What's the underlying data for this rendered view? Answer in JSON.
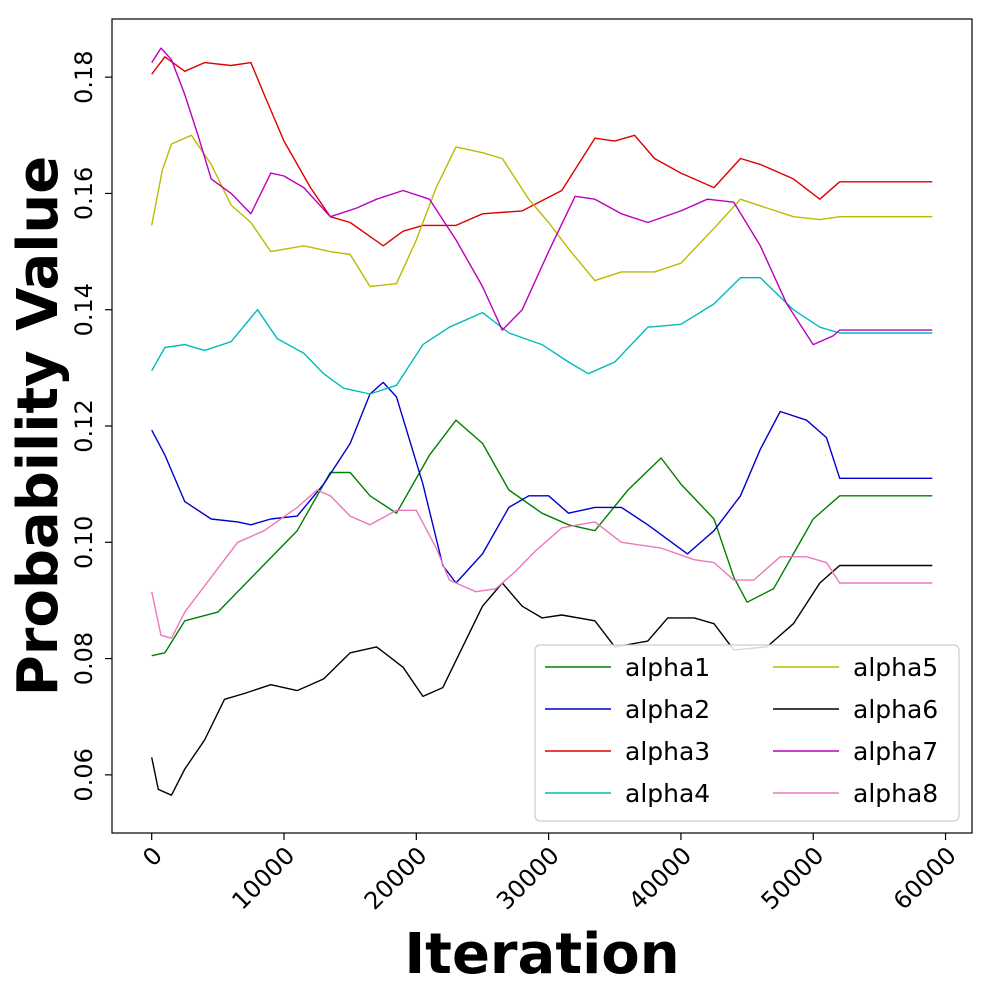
{
  "chart_data": {
    "type": "line",
    "title": "",
    "xlabel": "Iteration",
    "ylabel": "Probability Value",
    "xlim": [
      -3000,
      62000
    ],
    "ylim": [
      0.05,
      0.19
    ],
    "xticks": [
      0,
      10000,
      20000,
      30000,
      40000,
      50000,
      60000
    ],
    "yticks": [
      0.06,
      0.08,
      0.1,
      0.12,
      0.14,
      0.16,
      0.18
    ],
    "xtick_labels": [
      "0",
      "10000",
      "20000",
      "30000",
      "40000",
      "50000",
      "60000"
    ],
    "ytick_labels": [
      "0.06",
      "0.08",
      "0.10",
      "0.12",
      "0.14",
      "0.16",
      "0.18"
    ],
    "grid": false,
    "legend": {
      "position": "lower right",
      "columns": 2
    },
    "series": [
      {
        "name": "alpha1",
        "color": "#008000",
        "points": [
          [
            0,
            0.0805
          ],
          [
            1000,
            0.081
          ],
          [
            2500,
            0.0865
          ],
          [
            5000,
            0.088
          ],
          [
            8000,
            0.095
          ],
          [
            11000,
            0.102
          ],
          [
            13500,
            0.112
          ],
          [
            15000,
            0.112
          ],
          [
            16500,
            0.108
          ],
          [
            18500,
            0.105
          ],
          [
            21000,
            0.115
          ],
          [
            23000,
            0.121
          ],
          [
            25000,
            0.117
          ],
          [
            27000,
            0.109
          ],
          [
            29500,
            0.105
          ],
          [
            31500,
            0.103
          ],
          [
            33500,
            0.102
          ],
          [
            36000,
            0.109
          ],
          [
            38500,
            0.1145
          ],
          [
            40000,
            0.11
          ],
          [
            42500,
            0.104
          ],
          [
            44000,
            0.094
          ],
          [
            45000,
            0.0897
          ],
          [
            47000,
            0.092
          ],
          [
            48500,
            0.098
          ],
          [
            50000,
            0.104
          ],
          [
            52000,
            0.108
          ],
          [
            59000,
            0.108
          ]
        ]
      },
      {
        "name": "alpha2",
        "color": "#0000cc",
        "points": [
          [
            0,
            0.1193
          ],
          [
            1000,
            0.115
          ],
          [
            2500,
            0.107
          ],
          [
            4500,
            0.104
          ],
          [
            6500,
            0.1035
          ],
          [
            7500,
            0.103
          ],
          [
            9000,
            0.104
          ],
          [
            11000,
            0.1045
          ],
          [
            13000,
            0.11
          ],
          [
            15000,
            0.117
          ],
          [
            16500,
            0.1255
          ],
          [
            17500,
            0.1275
          ],
          [
            18500,
            0.125
          ],
          [
            20500,
            0.11
          ],
          [
            22000,
            0.096
          ],
          [
            23000,
            0.093
          ],
          [
            25000,
            0.098
          ],
          [
            27000,
            0.106
          ],
          [
            28500,
            0.108
          ],
          [
            30000,
            0.108
          ],
          [
            31500,
            0.105
          ],
          [
            33500,
            0.106
          ],
          [
            35500,
            0.106
          ],
          [
            37500,
            0.103
          ],
          [
            40500,
            0.098
          ],
          [
            42500,
            0.102
          ],
          [
            44500,
            0.108
          ],
          [
            46000,
            0.116
          ],
          [
            47500,
            0.1225
          ],
          [
            49500,
            0.121
          ],
          [
            51000,
            0.118
          ],
          [
            52000,
            0.111
          ],
          [
            59000,
            0.111
          ]
        ]
      },
      {
        "name": "alpha3",
        "color": "#dd0000",
        "points": [
          [
            0,
            0.1805
          ],
          [
            1000,
            0.1835
          ],
          [
            2500,
            0.181
          ],
          [
            4000,
            0.1825
          ],
          [
            6000,
            0.182
          ],
          [
            7500,
            0.1825
          ],
          [
            8500,
            0.177
          ],
          [
            10000,
            0.169
          ],
          [
            12000,
            0.161
          ],
          [
            13500,
            0.156
          ],
          [
            15000,
            0.155
          ],
          [
            17500,
            0.151
          ],
          [
            19000,
            0.1535
          ],
          [
            20500,
            0.1545
          ],
          [
            23000,
            0.1545
          ],
          [
            25000,
            0.1565
          ],
          [
            28000,
            0.157
          ],
          [
            31000,
            0.1605
          ],
          [
            33500,
            0.1695
          ],
          [
            35000,
            0.169
          ],
          [
            36500,
            0.17
          ],
          [
            38000,
            0.166
          ],
          [
            40000,
            0.1635
          ],
          [
            42500,
            0.161
          ],
          [
            44500,
            0.166
          ],
          [
            46000,
            0.165
          ],
          [
            48500,
            0.1625
          ],
          [
            50500,
            0.159
          ],
          [
            52000,
            0.162
          ],
          [
            59000,
            0.162
          ]
        ]
      },
      {
        "name": "alpha4",
        "color": "#00bbbb",
        "points": [
          [
            0,
            0.1295
          ],
          [
            1000,
            0.1335
          ],
          [
            2500,
            0.134
          ],
          [
            4000,
            0.133
          ],
          [
            6000,
            0.1345
          ],
          [
            8000,
            0.14
          ],
          [
            9500,
            0.135
          ],
          [
            11500,
            0.1325
          ],
          [
            13000,
            0.129
          ],
          [
            14500,
            0.1265
          ],
          [
            16500,
            0.1255
          ],
          [
            18500,
            0.127
          ],
          [
            20500,
            0.134
          ],
          [
            22500,
            0.137
          ],
          [
            25000,
            0.1395
          ],
          [
            27000,
            0.136
          ],
          [
            29500,
            0.134
          ],
          [
            31500,
            0.131
          ],
          [
            33000,
            0.129
          ],
          [
            35000,
            0.131
          ],
          [
            37500,
            0.137
          ],
          [
            40000,
            0.1375
          ],
          [
            42500,
            0.141
          ],
          [
            44500,
            0.1455
          ],
          [
            46000,
            0.1455
          ],
          [
            48500,
            0.14
          ],
          [
            50500,
            0.137
          ],
          [
            52000,
            0.136
          ],
          [
            59000,
            0.136
          ]
        ]
      },
      {
        "name": "alpha5",
        "color": "#bbbb00",
        "points": [
          [
            0,
            0.1545
          ],
          [
            800,
            0.164
          ],
          [
            1500,
            0.1685
          ],
          [
            3000,
            0.17
          ],
          [
            4500,
            0.165
          ],
          [
            6000,
            0.158
          ],
          [
            7500,
            0.155
          ],
          [
            9000,
            0.15
          ],
          [
            11500,
            0.151
          ],
          [
            13500,
            0.15
          ],
          [
            15000,
            0.1495
          ],
          [
            16500,
            0.144
          ],
          [
            18500,
            0.1445
          ],
          [
            20000,
            0.152
          ],
          [
            21500,
            0.161
          ],
          [
            23000,
            0.168
          ],
          [
            25000,
            0.167
          ],
          [
            26500,
            0.166
          ],
          [
            28500,
            0.159
          ],
          [
            30000,
            0.155
          ],
          [
            31500,
            0.1505
          ],
          [
            33500,
            0.145
          ],
          [
            35500,
            0.1465
          ],
          [
            38000,
            0.1465
          ],
          [
            40000,
            0.148
          ],
          [
            42500,
            0.154
          ],
          [
            44500,
            0.159
          ],
          [
            46500,
            0.1575
          ],
          [
            48500,
            0.156
          ],
          [
            50500,
            0.1555
          ],
          [
            52000,
            0.156
          ],
          [
            59000,
            0.156
          ]
        ]
      },
      {
        "name": "alpha6",
        "color": "#000000",
        "points": [
          [
            0,
            0.063
          ],
          [
            500,
            0.0575
          ],
          [
            1500,
            0.0565
          ],
          [
            2500,
            0.061
          ],
          [
            4000,
            0.066
          ],
          [
            5500,
            0.073
          ],
          [
            7000,
            0.074
          ],
          [
            9000,
            0.0755
          ],
          [
            11000,
            0.0745
          ],
          [
            13000,
            0.0765
          ],
          [
            15000,
            0.081
          ],
          [
            17000,
            0.082
          ],
          [
            19000,
            0.0785
          ],
          [
            20500,
            0.0735
          ],
          [
            22000,
            0.075
          ],
          [
            23500,
            0.082
          ],
          [
            25000,
            0.089
          ],
          [
            26500,
            0.093
          ],
          [
            28000,
            0.089
          ],
          [
            29500,
            0.087
          ],
          [
            31000,
            0.0875
          ],
          [
            33500,
            0.0865
          ],
          [
            35000,
            0.082
          ],
          [
            37500,
            0.083
          ],
          [
            39000,
            0.087
          ],
          [
            41000,
            0.087
          ],
          [
            42500,
            0.086
          ],
          [
            44000,
            0.0815
          ],
          [
            46500,
            0.082
          ],
          [
            48500,
            0.086
          ],
          [
            50500,
            0.093
          ],
          [
            52000,
            0.096
          ],
          [
            59000,
            0.096
          ]
        ]
      },
      {
        "name": "alpha7",
        "color": "#bb00bb",
        "points": [
          [
            0,
            0.1825
          ],
          [
            700,
            0.185
          ],
          [
            1500,
            0.183
          ],
          [
            2500,
            0.177
          ],
          [
            3500,
            0.17
          ],
          [
            4500,
            0.1625
          ],
          [
            6000,
            0.16
          ],
          [
            7500,
            0.1565
          ],
          [
            9000,
            0.1635
          ],
          [
            10000,
            0.163
          ],
          [
            11500,
            0.161
          ],
          [
            13500,
            0.156
          ],
          [
            15500,
            0.1575
          ],
          [
            17000,
            0.159
          ],
          [
            19000,
            0.1605
          ],
          [
            21000,
            0.159
          ],
          [
            23000,
            0.152
          ],
          [
            25000,
            0.144
          ],
          [
            26500,
            0.1365
          ],
          [
            28000,
            0.14
          ],
          [
            30000,
            0.15
          ],
          [
            32000,
            0.1595
          ],
          [
            33500,
            0.159
          ],
          [
            35500,
            0.1565
          ],
          [
            37500,
            0.155
          ],
          [
            40000,
            0.157
          ],
          [
            42000,
            0.159
          ],
          [
            44000,
            0.1585
          ],
          [
            46000,
            0.151
          ],
          [
            48000,
            0.141
          ],
          [
            50000,
            0.134
          ],
          [
            51500,
            0.1355
          ],
          [
            52000,
            0.1365
          ],
          [
            59000,
            0.1365
          ]
        ]
      },
      {
        "name": "alpha8",
        "color": "#ee77bb",
        "points": [
          [
            0,
            0.0915
          ],
          [
            700,
            0.084
          ],
          [
            1500,
            0.0835
          ],
          [
            2500,
            0.088
          ],
          [
            4500,
            0.094
          ],
          [
            6500,
            0.1
          ],
          [
            8500,
            0.102
          ],
          [
            11000,
            0.106
          ],
          [
            12500,
            0.109
          ],
          [
            13500,
            0.108
          ],
          [
            15000,
            0.1045
          ],
          [
            16500,
            0.103
          ],
          [
            18500,
            0.1055
          ],
          [
            20000,
            0.1055
          ],
          [
            21500,
            0.099
          ],
          [
            22500,
            0.0935
          ],
          [
            24500,
            0.0915
          ],
          [
            26000,
            0.092
          ],
          [
            27500,
            0.095
          ],
          [
            29000,
            0.0985
          ],
          [
            31000,
            0.1025
          ],
          [
            33500,
            0.1035
          ],
          [
            35500,
            0.1
          ],
          [
            38500,
            0.099
          ],
          [
            41000,
            0.097
          ],
          [
            42500,
            0.0965
          ],
          [
            44000,
            0.0935
          ],
          [
            45500,
            0.0935
          ],
          [
            47500,
            0.0975
          ],
          [
            49500,
            0.0975
          ],
          [
            51000,
            0.0965
          ],
          [
            52000,
            0.093
          ],
          [
            59000,
            0.093
          ]
        ]
      }
    ]
  }
}
